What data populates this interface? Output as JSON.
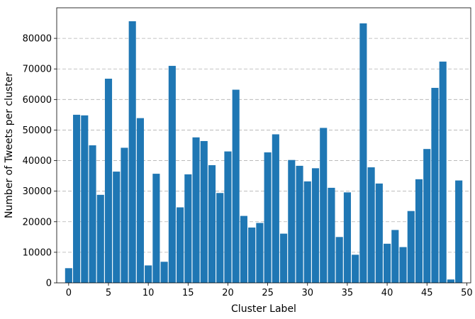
{
  "chart_data": {
    "type": "bar",
    "title": "",
    "xlabel": "Cluster Label",
    "ylabel": "Number of Tweets per cluster",
    "categories": [
      0,
      1,
      2,
      3,
      4,
      5,
      6,
      7,
      8,
      9,
      10,
      11,
      12,
      13,
      14,
      15,
      16,
      17,
      18,
      19,
      20,
      21,
      22,
      23,
      24,
      25,
      26,
      27,
      28,
      29,
      30,
      31,
      32,
      33,
      34,
      35,
      36,
      37,
      38,
      39,
      40,
      41,
      42,
      43,
      44,
      45,
      46,
      47,
      48,
      49
    ],
    "values": [
      4800,
      55000,
      54800,
      45000,
      28800,
      66800,
      36400,
      44200,
      85600,
      53900,
      5700,
      35700,
      6900,
      71000,
      24700,
      35500,
      47600,
      46400,
      38500,
      29400,
      43000,
      63200,
      21900,
      18100,
      19600,
      42700,
      48600,
      16100,
      40200,
      38300,
      33200,
      37500,
      50700,
      31100,
      15000,
      29600,
      9200,
      84900,
      37800,
      32500,
      12800,
      17300,
      11700,
      23500,
      33900,
      43800,
      63800,
      72400,
      1100,
      33500
    ],
    "xticks": [
      0,
      5,
      10,
      15,
      20,
      25,
      30,
      35,
      40,
      45,
      50
    ],
    "yticks": [
      0,
      10000,
      20000,
      30000,
      40000,
      50000,
      60000,
      70000,
      80000
    ],
    "xlim": [
      -1.5,
      50.5
    ],
    "ylim": [
      0,
      90000
    ],
    "grid": "horizontal dashed",
    "bar_color": "#1f77b4",
    "grid_color": "#b0b0b0"
  }
}
